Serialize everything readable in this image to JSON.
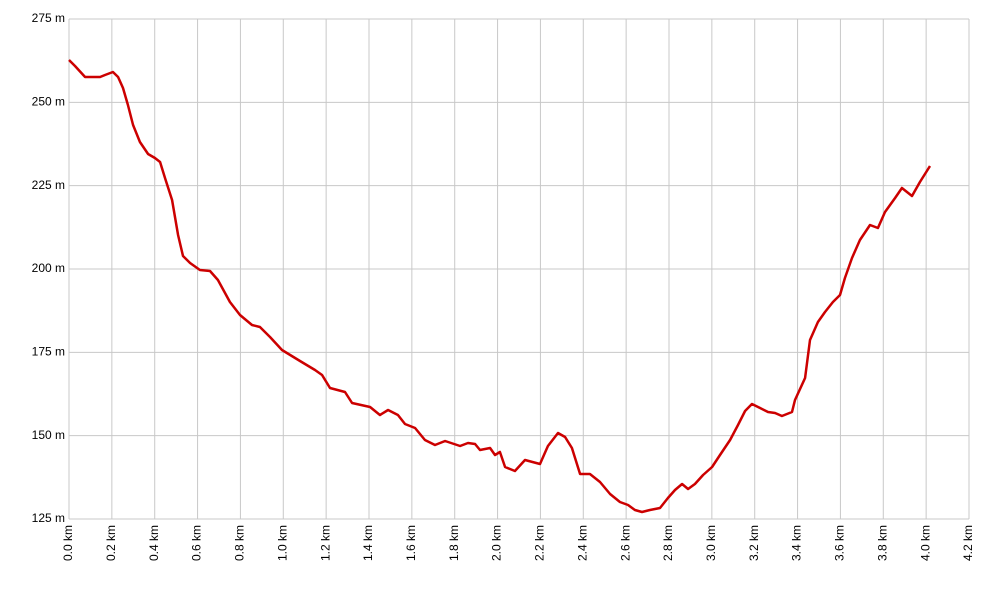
{
  "chart_data": {
    "type": "line",
    "color": "#cc0000",
    "grid": true,
    "x": [
      0,
      0.028,
      0.075,
      0.145,
      0.168,
      0.205,
      0.229,
      0.252,
      0.275,
      0.299,
      0.331,
      0.369,
      0.401,
      0.425,
      0.448,
      0.481,
      0.509,
      0.532,
      0.565,
      0.611,
      0.658,
      0.695,
      0.751,
      0.798,
      0.854,
      0.891,
      0.938,
      0.994,
      1.078,
      1.148,
      1.181,
      1.218,
      1.288,
      1.321,
      1.405,
      1.451,
      1.489,
      1.535,
      1.568,
      1.615,
      1.661,
      1.708,
      1.755,
      1.825,
      1.862,
      1.895,
      1.918,
      1.965,
      1.988,
      2.011,
      2.035,
      2.081,
      2.128,
      2.198,
      2.235,
      2.282,
      2.315,
      2.347,
      2.385,
      2.431,
      2.478,
      2.525,
      2.571,
      2.609,
      2.641,
      2.674,
      2.711,
      2.758,
      2.795,
      2.828,
      2.861,
      2.889,
      2.921,
      2.959,
      3.001,
      3.038,
      3.085,
      3.122,
      3.155,
      3.187,
      3.225,
      3.262,
      3.295,
      3.327,
      3.374,
      3.388,
      3.435,
      3.458,
      3.495,
      3.528,
      3.565,
      3.598,
      3.621,
      3.654,
      3.691,
      3.738,
      3.775,
      3.808,
      3.855,
      3.887,
      3.934,
      3.971,
      4.018
    ],
    "values": [
      262.7,
      260.9,
      257.6,
      257.6,
      258.2,
      259.1,
      257.6,
      254.3,
      249.2,
      243.2,
      238.1,
      234.5,
      233.3,
      232.1,
      227.3,
      220.7,
      210.2,
      203.9,
      201.8,
      199.7,
      199.4,
      196.7,
      190.1,
      186.2,
      183.2,
      182.6,
      179.6,
      175.7,
      172.4,
      169.7,
      168.2,
      164.3,
      163.1,
      159.8,
      158.6,
      156.2,
      157.7,
      156.2,
      153.5,
      152.3,
      148.7,
      147.2,
      148.4,
      146.9,
      147.8,
      147.5,
      145.7,
      146.3,
      144.2,
      145.1,
      140.6,
      139.4,
      142.7,
      141.5,
      146.9,
      150.8,
      149.6,
      146.3,
      138.5,
      138.5,
      136.1,
      132.5,
      130.1,
      129.2,
      127.7,
      127.1,
      127.7,
      128.3,
      131.3,
      133.7,
      135.5,
      134.0,
      135.5,
      138.2,
      140.6,
      144.2,
      148.7,
      153.2,
      157.4,
      159.5,
      158.3,
      157.1,
      156.8,
      155.9,
      157.1,
      160.7,
      167.3,
      178.7,
      184.1,
      187.1,
      190.1,
      192.2,
      197.3,
      203.3,
      208.7,
      213.2,
      212.3,
      217.1,
      221.3,
      224.3,
      221.9,
      226.1,
      230.9
    ],
    "xlim": [
      0,
      4.2
    ],
    "xticks": [
      {
        "value": 0,
        "label": "0.0 km"
      },
      {
        "value": 0.2,
        "label": "0.2 km"
      },
      {
        "value": 0.4,
        "label": "0.4 km"
      },
      {
        "value": 0.6,
        "label": "0.6 km"
      },
      {
        "value": 0.8,
        "label": "0.8 km"
      },
      {
        "value": 1.0,
        "label": "1.0 km"
      },
      {
        "value": 1.2,
        "label": "1.2 km"
      },
      {
        "value": 1.4,
        "label": "1.4 km"
      },
      {
        "value": 1.6,
        "label": "1.6 km"
      },
      {
        "value": 1.8,
        "label": "1.8 km"
      },
      {
        "value": 2.0,
        "label": "2.0 km"
      },
      {
        "value": 2.2,
        "label": "2.2 km"
      },
      {
        "value": 2.4,
        "label": "2.4 km"
      },
      {
        "value": 2.6,
        "label": "2.6 km"
      },
      {
        "value": 2.8,
        "label": "2.8 km"
      },
      {
        "value": 3.0,
        "label": "3.0 km"
      },
      {
        "value": 3.2,
        "label": "3.2 km"
      },
      {
        "value": 3.4,
        "label": "3.4 km"
      },
      {
        "value": 3.6,
        "label": "3.6 km"
      },
      {
        "value": 3.8,
        "label": "3.8 km"
      },
      {
        "value": 4.0,
        "label": "4.0 km"
      },
      {
        "value": 4.2,
        "label": "4.2 km"
      }
    ],
    "ylim": [
      125,
      275
    ],
    "yticks": [
      {
        "value": 125,
        "label": "125 m"
      },
      {
        "value": 150,
        "label": "150 m"
      },
      {
        "value": 175,
        "label": "175 m"
      },
      {
        "value": 200,
        "label": "200 m"
      },
      {
        "value": 225,
        "label": "225 m"
      },
      {
        "value": 250,
        "label": "250 m"
      },
      {
        "value": 275,
        "label": "275 m"
      }
    ]
  }
}
